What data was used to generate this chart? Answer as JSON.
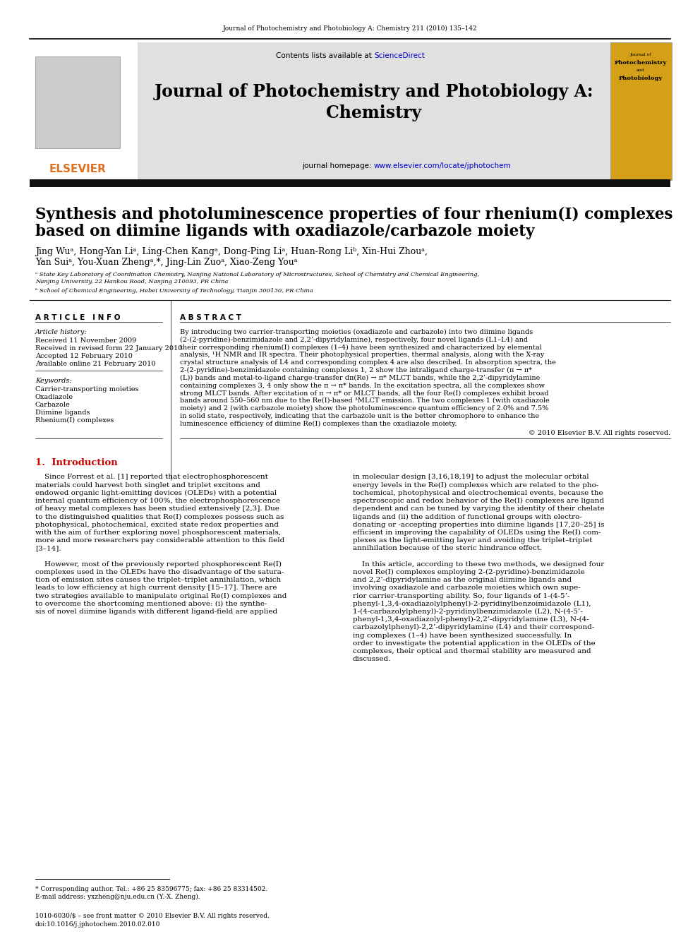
{
  "page_journal_ref": "Journal of Photochemistry and Photobiology A: Chemistry 211 (2010) 135–142",
  "journal_title_line1": "Journal of Photochemistry and Photobiology A:",
  "journal_title_line2": "Chemistry",
  "contents_line": "Contents lists available at",
  "sciencedirect": "ScienceDirect",
  "homepage_prefix": "journal homepage: ",
  "homepage_url": "www.elsevier.com/locate/jphotochem",
  "elsevier_text": "ELSEVIER",
  "article_title_line1": "Synthesis and photoluminescence properties of four rhenium(I) complexes",
  "article_title_line2": "based on diimine ligands with oxadiazole/carbazole moiety",
  "authors_line1": "Jing Wuᵃ, Hong-Yan Liᵃ, Ling-Chen Kangᵃ, Dong-Ping Liᵃ, Huan-Rong Liᵇ, Xin-Hui Zhouᵃ,",
  "authors_line2": "Yan Suiᵃ, You-Xuan Zhengᵃ,*, Jing-Lin Zuoᵃ, Xiao-Zeng Youᵃ",
  "affil_a_line1": "ᵃ State Key Laboratory of Coordination Chemistry, Nanjing National Laboratory of Microstructures, School of Chemistry and Chemical Engineering,",
  "affil_a_line2": "Nanjing University, 22 Hankou Road, Nanjing 210093, PR China",
  "affil_b": "ᵇ School of Chemical Engineering, Hebei University of Technology, Tianjin 300130, PR China",
  "article_info_title": "A R T I C L E   I N F O",
  "article_history_label": "Article history:",
  "received": "Received 11 November 2009",
  "received_revised": "Received in revised form 22 January 2010",
  "accepted": "Accepted 12 February 2010",
  "available": "Available online 21 February 2010",
  "keywords_label": "Keywords:",
  "keyword1": "Carrier-transporting moieties",
  "keyword2": "Oxadiazole",
  "keyword3": "Carbazole",
  "keyword4": "Diimine ligands",
  "keyword5": "Rhenium(I) complexes",
  "abstract_title": "A B S T R A C T",
  "abstract_lines": [
    "By introducing two carrier-transporting moieties (oxadiazole and carbazole) into two diimine ligands",
    "(2-(2-pyridine)-benzimidazole and 2,2’-dipyridylamine), respectively, four novel ligands (L1–L4) and",
    "their corresponding rhenium(I) complexes (1–4) have been synthesized and characterized by elemental",
    "analysis, ¹H NMR and IR spectra. Their photophysical properties, thermal analysis, along with the X-ray",
    "crystal structure analysis of L4 and corresponding complex 4 are also described. In absorption spectra, the",
    "2-(2-pyridine)-benzimidazole containing complexes 1, 2 show the intraligand charge-transfer (π → π*",
    "(L)) bands and metal-to-ligand charge-transfer dπ(Re) → π* MLCT bands, while the 2,2’-dipyridylamine",
    "containing complexes 3, 4 only show the π → π* bands. In the excitation spectra, all the complexes show",
    "strong MLCT bands. After excitation of π → π* or MLCT bands, all the four Re(I) complexes exhibit broad",
    "bands around 550–560 nm due to the Re(I)-based ³MLCT emission. The two complexes 1 (with oxadiazole",
    "moiety) and 2 (with carbazole moiety) show the photoluminescence quantum efficiency of 2.0% and 7.5%",
    "in solid state, respectively, indicating that the carbazole unit is the better chromophore to enhance the",
    "luminescence efficiency of diimine Re(I) complexes than the oxadiazole moiety."
  ],
  "copyright": "© 2010 Elsevier B.V. All rights reserved.",
  "section1_title": "1.  Introduction",
  "intro_indent": "    Since Forrest et al. [1] reported that electrophosphorescent",
  "intro_col1_lines": [
    "    Since Forrest et al. [1] reported that electrophosphorescent",
    "materials could harvest both singlet and triplet excitons and",
    "endowed organic light-emitting devices (OLEDs) with a potential",
    "internal quantum efficiency of 100%, the electrophosphorescence",
    "of heavy metal complexes has been studied extensively [2,3]. Due",
    "to the distinguished qualities that Re(I) complexes possess such as",
    "photophysical, photochemical, excited state redox properties and",
    "with the aim of further exploring novel phosphorescent materials,",
    "more and more researchers pay considerable attention to this field",
    "[3–14].",
    "",
    "    However, most of the previously reported phosphorescent Re(I)",
    "complexes used in the OLEDs have the disadvantage of the satura-",
    "tion of emission sites causes the triplet–triplet annihilation, which",
    "leads to low efficiency at high current density [15–17]. There are",
    "two strategies available to manipulate original Re(I) complexes and",
    "to overcome the shortcoming mentioned above: (i) the synthe-",
    "sis of novel diimine ligands with different ligand-field are applied"
  ],
  "intro_col2_lines": [
    "in molecular design [3,16,18,19] to adjust the molecular orbital",
    "energy levels in the Re(I) complexes which are related to the pho-",
    "tochemical, photophysical and electrochemical events, because the",
    "spectroscopic and redox behavior of the Re(I) complexes are ligand",
    "dependent and can be tuned by varying the identity of their chelate",
    "ligands and (ii) the addition of functional groups with electro-",
    "donating or -accepting properties into diimine ligands [17,20–25] is",
    "efficient in improving the capability of OLEDs using the Re(I) com-",
    "plexes as the light-emitting layer and avoiding the triplet–triplet",
    "annihilation because of the steric hindrance effect.",
    "",
    "    In this article, according to these two methods, we designed four",
    "novel Re(I) complexes employing 2-(2-pyridine)-benzimidazole",
    "and 2,2’-dipyridylamine as the original diimine ligands and",
    "involving oxadiazole and carbazole moieties which own supe-",
    "rior carrier-transporting ability. So, four ligands of 1-(4-5’-",
    "phenyl-1,3,4-oxadiazolylphenyl)-2-pyridinylbenzoimidazole (L1),",
    "1-(4-carbazolylphenyl)-2-pyridinylbenzimidazole (L2), N-(4-5’-",
    "phenyl-1,3,4-oxadiazolyl-phenyl)-2,2’-dipyridylamine (L3), N-(4-",
    "carbazolylphenyl)-2,2’-dipyridylamine (L4) and their correspond-",
    "ing complexes (1–4) have been synthesized successfully. In",
    "order to investigate the potential application in the OLEDs of the",
    "complexes, their optical and thermal stability are measured and",
    "discussed."
  ],
  "footnote_line1": "* Corresponding author. Tel.: +86 25 83596775; fax: +86 25 83314502.",
  "footnote_line2": "E-mail address: yxzheng@nju.edu.cn (Y.-X. Zheng).",
  "issn_line1": "1010-6030/$ – see front matter © 2010 Elsevier B.V. All rights reserved.",
  "issn_line2": "doi:10.1016/j.jphotochem.2010.02.010",
  "link_color": "#0000CC",
  "elsevier_orange": "#E07020",
  "header_bg": "#E0E0E0",
  "dark_bar_color": "#111111",
  "section_color": "#CC0000",
  "cover_bg": "#D4A017"
}
